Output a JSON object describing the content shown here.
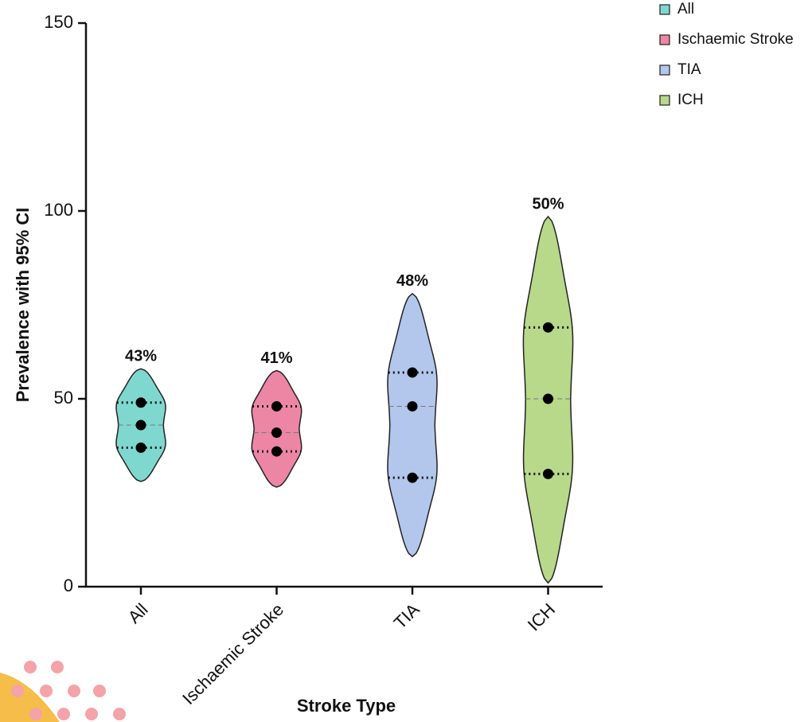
{
  "chart_data": {
    "type": "violin",
    "y_label": "Prevalence with 95% CI",
    "x_label": "Stroke Type",
    "categories": [
      "All",
      "Ischaemic Stroke",
      "TIA",
      "ICH"
    ],
    "colors": [
      "#7fd8cf",
      "#ec86a4",
      "#b3c6ec",
      "#b8d88a"
    ],
    "values": [
      43,
      41,
      48,
      50
    ],
    "value_labels": [
      "43%",
      "41%",
      "48%",
      "50%"
    ],
    "lower": [
      37,
      36,
      29,
      30
    ],
    "upper": [
      49,
      48,
      57,
      69
    ],
    "min": [
      28,
      26.5,
      8,
      1
    ],
    "max": [
      58,
      57.5,
      78,
      98.5
    ],
    "ylim": [
      0,
      150
    ],
    "yticks": [
      0,
      50,
      100,
      150
    ],
    "legend": "top-right"
  }
}
